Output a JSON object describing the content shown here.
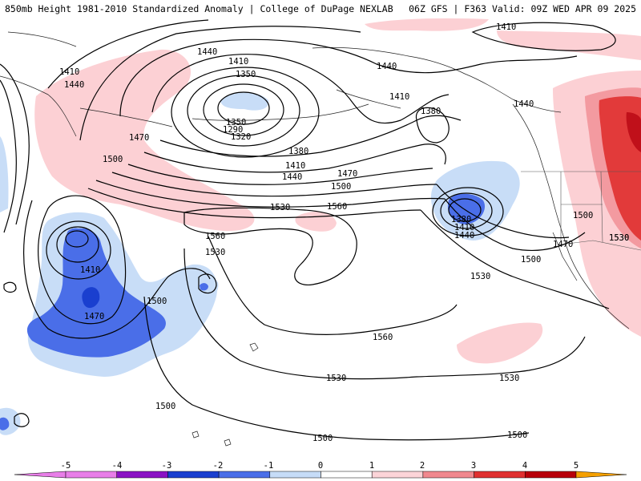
{
  "header": {
    "title_left": "850mb Height 1981-2010 Standardized Anomaly | College of DuPage NEXLAB",
    "title_right": "06Z GFS | F363 Valid: 09Z WED APR 09 2025"
  },
  "contour_labels": [
    "1410",
    "1440",
    "1440",
    "1410",
    "1350",
    "1350",
    "1320",
    "1290",
    "1410",
    "1440",
    "1470",
    "1500",
    "1380",
    "1410",
    "1440",
    "1470",
    "1500",
    "1530",
    "1560",
    "1410",
    "1380",
    "1380",
    "1410",
    "1440",
    "1440",
    "1410",
    "1470",
    "1500",
    "1500",
    "1530",
    "1560",
    "1530",
    "1530",
    "1530",
    "1560",
    "1530",
    "1500",
    "1500",
    "1500",
    "1470",
    "1530",
    "1500"
  ],
  "legend": {
    "ticks": [
      "-5",
      "-4",
      "-3",
      "-2",
      "-1",
      "0",
      "1",
      "2",
      "3",
      "4",
      "5"
    ],
    "colors": {
      "neg5": "#e87ee8",
      "neg4": "#8a12c4",
      "neg3": "#1a3fcf",
      "neg2": "#4a6ee8",
      "neg1": "#c6dcf7",
      "zero": "#ffffff",
      "pos1": "#fcd4d8",
      "pos2": "#f0888e",
      "pos3": "#e03030",
      "pos4": "#b8000a",
      "pos5": "#f5a000"
    }
  },
  "anomaly_colors": {
    "light_pink": "#fcd0d4",
    "pink": "#f39aa0",
    "red": "#e23a3a",
    "dark_red": "#c0101a",
    "light_blue": "#c8ddf7",
    "blue": "#4a6ee8",
    "dark_blue": "#1a3fcf"
  }
}
